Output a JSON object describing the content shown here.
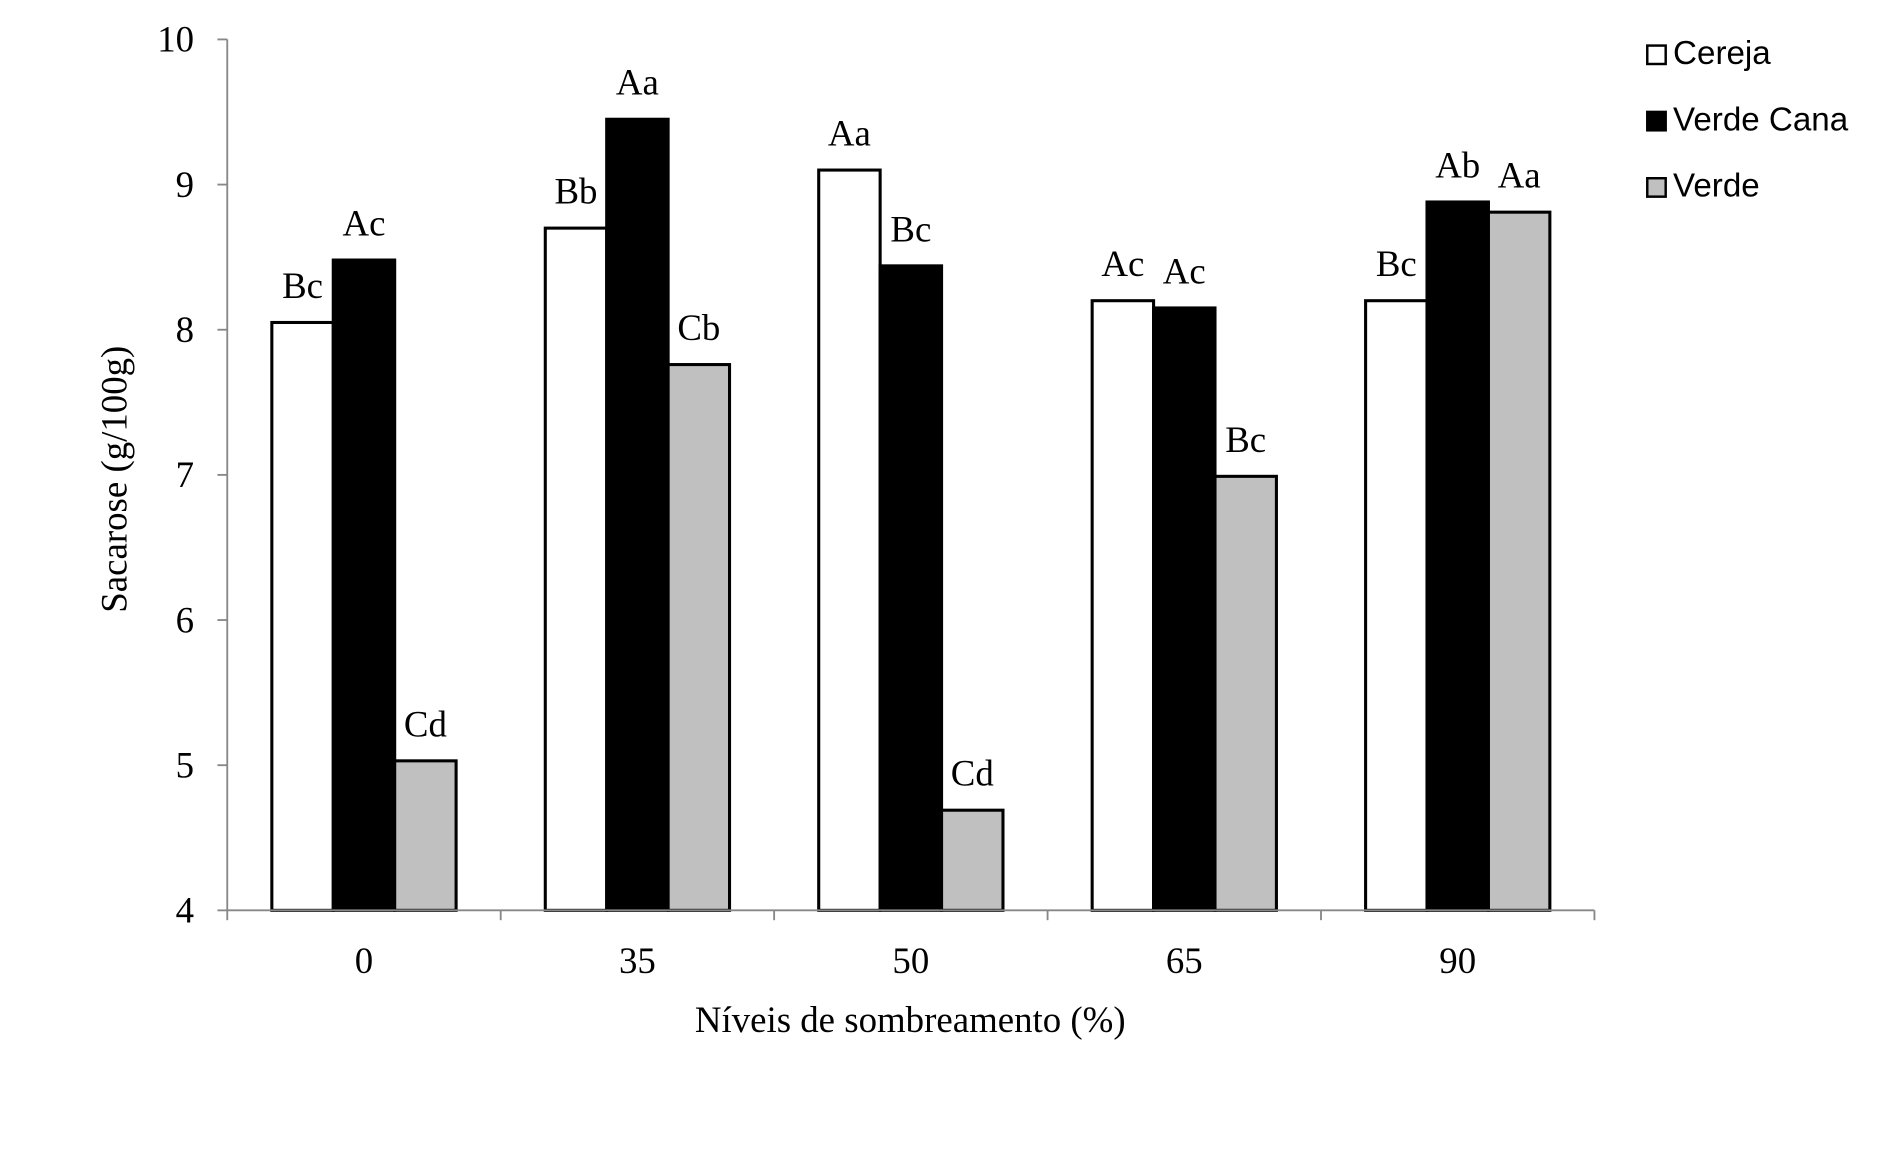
{
  "chart_data": {
    "type": "bar",
    "title": "",
    "xlabel": "Níveis de sombreamento (%)",
    "ylabel": "Sacarose (g/100g)",
    "ylim": [
      4,
      10
    ],
    "yticks": [
      "4",
      "5",
      "6",
      "7",
      "8",
      "9",
      "10"
    ],
    "categories": [
      "0",
      "35",
      "50",
      "65",
      "90"
    ],
    "legend_position": "top-right",
    "series": [
      {
        "name": "Cereja",
        "color": "#ffffff",
        "values": [
          8.05,
          8.7,
          9.1,
          8.2,
          8.2
        ],
        "labels": [
          "Bc",
          "Bb",
          "Aa",
          "Ac",
          "Bc"
        ]
      },
      {
        "name": "Verde Cana",
        "color": "#000000",
        "values": [
          8.48,
          9.45,
          8.44,
          8.15,
          8.88
        ],
        "labels": [
          "Ac",
          "Aa",
          "Bc",
          "Ac",
          "Ab"
        ]
      },
      {
        "name": "Verde",
        "color": "#c0c0c0",
        "values": [
          5.03,
          7.76,
          4.69,
          6.99,
          8.81
        ],
        "labels": [
          "Cd",
          "Cb",
          "Cd",
          "Bc",
          "Aa"
        ]
      }
    ]
  }
}
